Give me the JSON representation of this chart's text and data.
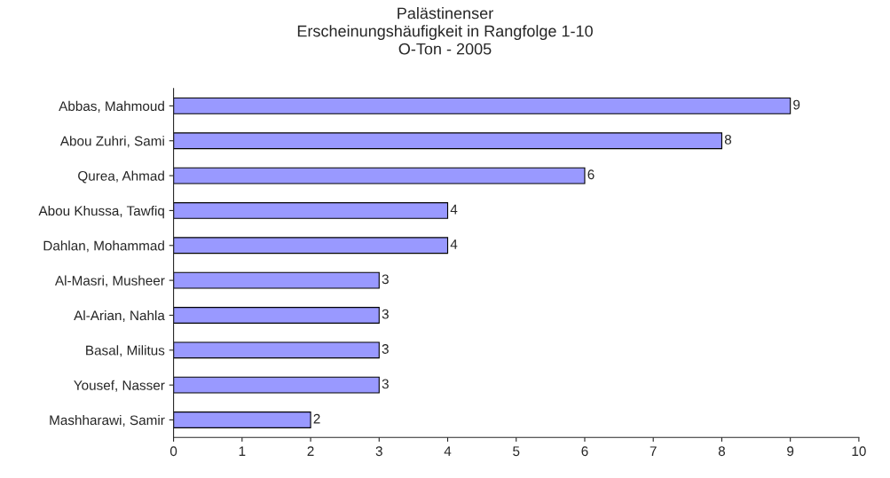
{
  "chart_data": {
    "type": "bar",
    "orientation": "horizontal",
    "title": "Palästinenser\nErscheinungshäufigkeit in Rangfolge 1-10\nO-Ton - 2005",
    "categories": [
      "Abbas, Mahmoud",
      "Abou Zuhri, Sami",
      "Qurea, Ahmad",
      "Abou Khussa, Tawfiq",
      "Dahlan, Mohammad",
      "Al-Masri, Musheer",
      "Al-Arian, Nahla",
      "Basal, Militus",
      "Yousef, Nasser",
      "Mashharawi, Samir"
    ],
    "values": [
      9,
      8,
      6,
      4,
      4,
      3,
      3,
      3,
      3,
      2
    ],
    "color": "#9999ff",
    "xlim": [
      0,
      10
    ],
    "xticks": [
      0,
      1,
      2,
      3,
      4,
      5,
      6,
      7,
      8,
      9,
      10
    ],
    "data_labels": true,
    "grid": false,
    "legend": false
  }
}
